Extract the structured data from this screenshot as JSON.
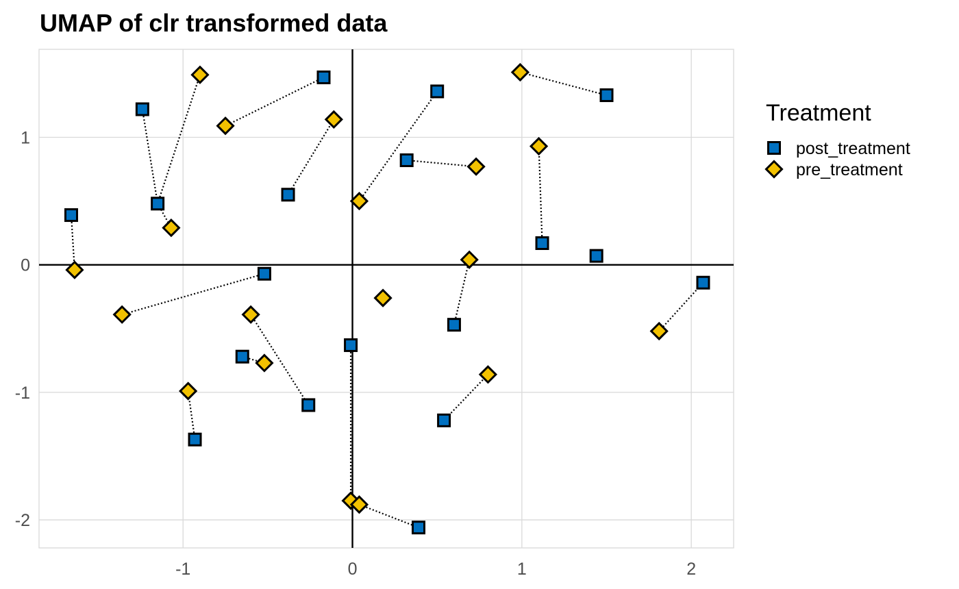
{
  "chart_data": {
    "type": "scatter",
    "title": "UMAP of clr transformed data",
    "xlabel": "",
    "ylabel": "",
    "xlim": [
      -1.85,
      2.25
    ],
    "ylim": [
      -2.22,
      1.69
    ],
    "x_ticks": [
      -1,
      0,
      1,
      2
    ],
    "x_tick_labels": [
      "-1",
      "0",
      "1",
      "2"
    ],
    "y_ticks": [
      -2,
      -1,
      0,
      1
    ],
    "y_tick_labels": [
      "-2",
      "-1",
      "0",
      "1"
    ],
    "grid": true,
    "zero_lines": true,
    "legend": {
      "title": "Treatment",
      "placement": "right",
      "entries": [
        {
          "label": "post_treatment",
          "shape": "square",
          "color": "#0070C0"
        },
        {
          "label": "pre_treatment",
          "shape": "diamond",
          "color": "#F2C100"
        }
      ]
    },
    "series": [
      {
        "name": "post_treatment",
        "marker": "square",
        "color": "#0070C0",
        "points": [
          {
            "x": -1.66,
            "y": 0.39
          },
          {
            "x": -1.24,
            "y": 1.22
          },
          {
            "x": -1.15,
            "y": 0.48
          },
          {
            "x": -0.52,
            "y": -0.07
          },
          {
            "x": -0.65,
            "y": -0.72
          },
          {
            "x": -0.26,
            "y": -1.1
          },
          {
            "x": -0.93,
            "y": -1.37
          },
          {
            "x": -0.38,
            "y": 0.55
          },
          {
            "x": -0.17,
            "y": 1.47
          },
          {
            "x": 0.5,
            "y": 1.36
          },
          {
            "x": 0.32,
            "y": 0.82
          },
          {
            "x": 1.5,
            "y": 1.33
          },
          {
            "x": 1.12,
            "y": 0.17
          },
          {
            "x": 1.44,
            "y": 0.07
          },
          {
            "x": 0.6,
            "y": -0.47
          },
          {
            "x": -0.01,
            "y": -0.63
          },
          {
            "x": 0.54,
            "y": -1.22
          },
          {
            "x": 0.39,
            "y": -2.06
          },
          {
            "x": 2.07,
            "y": -0.14
          }
        ]
      },
      {
        "name": "pre_treatment",
        "marker": "diamond",
        "color": "#F2C100",
        "points": [
          {
            "x": -1.64,
            "y": -0.04
          },
          {
            "x": -0.9,
            "y": 1.49
          },
          {
            "x": -1.07,
            "y": 0.29
          },
          {
            "x": -1.36,
            "y": -0.39
          },
          {
            "x": -0.52,
            "y": -0.77
          },
          {
            "x": -0.6,
            "y": -0.39
          },
          {
            "x": -0.97,
            "y": -0.99
          },
          {
            "x": -0.75,
            "y": 1.09
          },
          {
            "x": -0.11,
            "y": 1.14
          },
          {
            "x": 0.04,
            "y": 0.5
          },
          {
            "x": 0.73,
            "y": 0.77
          },
          {
            "x": 0.99,
            "y": 1.51
          },
          {
            "x": 1.1,
            "y": 0.93
          },
          {
            "x": 0.69,
            "y": 0.04
          },
          {
            "x": 0.18,
            "y": -0.26
          },
          {
            "x": 0.8,
            "y": -0.86
          },
          {
            "x": -0.01,
            "y": -1.85
          },
          {
            "x": 0.04,
            "y": -1.88
          },
          {
            "x": 1.81,
            "y": -0.52
          }
        ]
      }
    ],
    "pairs": [
      [
        [
          -1.66,
          0.39
        ],
        [
          -1.64,
          -0.04
        ]
      ],
      [
        [
          -1.24,
          1.22
        ],
        [
          -1.15,
          0.48
        ]
      ],
      [
        [
          -1.15,
          0.48
        ],
        [
          -0.9,
          1.49
        ]
      ],
      [
        [
          -1.15,
          0.48
        ],
        [
          -1.07,
          0.29
        ]
      ],
      [
        [
          -0.52,
          -0.07
        ],
        [
          -1.36,
          -0.39
        ]
      ],
      [
        [
          -0.65,
          -0.72
        ],
        [
          -0.52,
          -0.77
        ]
      ],
      [
        [
          -0.26,
          -1.1
        ],
        [
          -0.6,
          -0.39
        ]
      ],
      [
        [
          -0.93,
          -1.37
        ],
        [
          -0.97,
          -0.99
        ]
      ],
      [
        [
          -0.17,
          1.47
        ],
        [
          -0.75,
          1.09
        ]
      ],
      [
        [
          -0.38,
          0.55
        ],
        [
          -0.11,
          1.14
        ]
      ],
      [
        [
          0.5,
          1.36
        ],
        [
          0.04,
          0.5
        ]
      ],
      [
        [
          0.32,
          0.82
        ],
        [
          0.73,
          0.77
        ]
      ],
      [
        [
          1.5,
          1.33
        ],
        [
          0.99,
          1.51
        ]
      ],
      [
        [
          1.12,
          0.17
        ],
        [
          1.1,
          0.93
        ]
      ],
      [
        [
          0.6,
          -0.47
        ],
        [
          0.69,
          0.04
        ]
      ],
      [
        [
          0.54,
          -1.22
        ],
        [
          0.8,
          -0.86
        ]
      ],
      [
        [
          -0.01,
          -0.63
        ],
        [
          -0.01,
          -1.85
        ]
      ],
      [
        [
          0.39,
          -2.06
        ],
        [
          0.04,
          -1.88
        ]
      ],
      [
        [
          2.07,
          -0.14
        ],
        [
          1.81,
          -0.52
        ]
      ]
    ]
  }
}
